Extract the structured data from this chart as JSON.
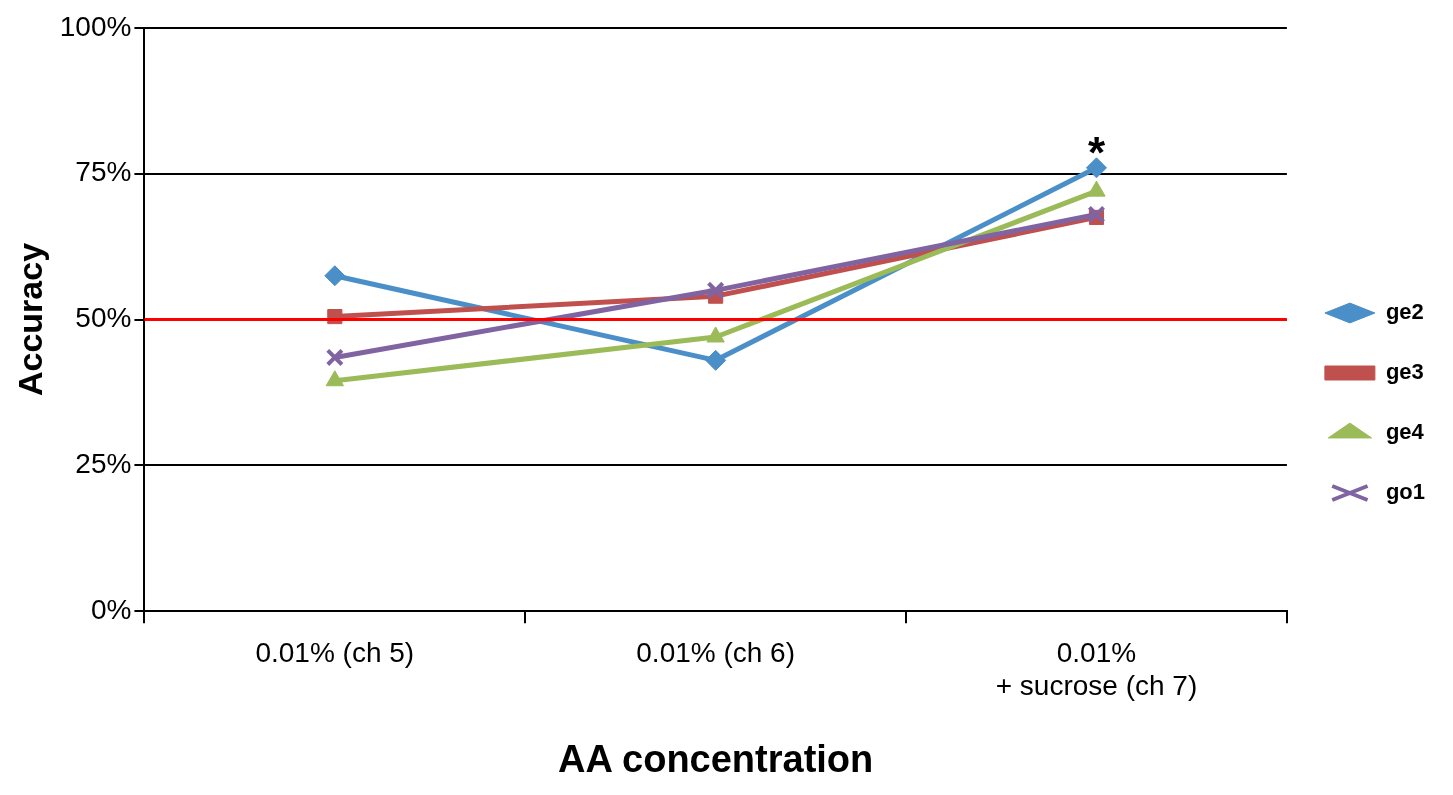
{
  "chart_data": {
    "type": "line",
    "xlabel": "AA concentration",
    "ylabel": "Accuracy",
    "categories": [
      "0.01% (ch 5)",
      "0.01% (ch 6)",
      "0.01%\n+ sucrose (ch 7)"
    ],
    "series": [
      {
        "name": "ge2",
        "color": "#4a8fc7",
        "marker": "diamond",
        "values": [
          57.5,
          43,
          76
        ]
      },
      {
        "name": "ge3",
        "color": "#c0504d",
        "marker": "square",
        "values": [
          50.5,
          54,
          67.5
        ]
      },
      {
        "name": "ge4",
        "color": "#9bbb59",
        "marker": "triangle",
        "values": [
          39.5,
          47,
          72
        ]
      },
      {
        "name": "go1",
        "color": "#8064a2",
        "marker": "cross",
        "values": [
          43.5,
          55,
          68
        ]
      }
    ],
    "ylim": [
      0,
      100
    ],
    "yticks": [
      {
        "value": 0,
        "label": "0%"
      },
      {
        "value": 25,
        "label": "25%"
      },
      {
        "value": 50,
        "label": "50%"
      },
      {
        "value": 75,
        "label": "75%"
      },
      {
        "value": 100,
        "label": "100%"
      }
    ],
    "grid": "y",
    "legend": "right",
    "line_style": "solid",
    "ref_lines": [
      {
        "axis": "y",
        "value": 50,
        "color": "#ff0000"
      }
    ],
    "annotations": [
      "*"
    ]
  }
}
